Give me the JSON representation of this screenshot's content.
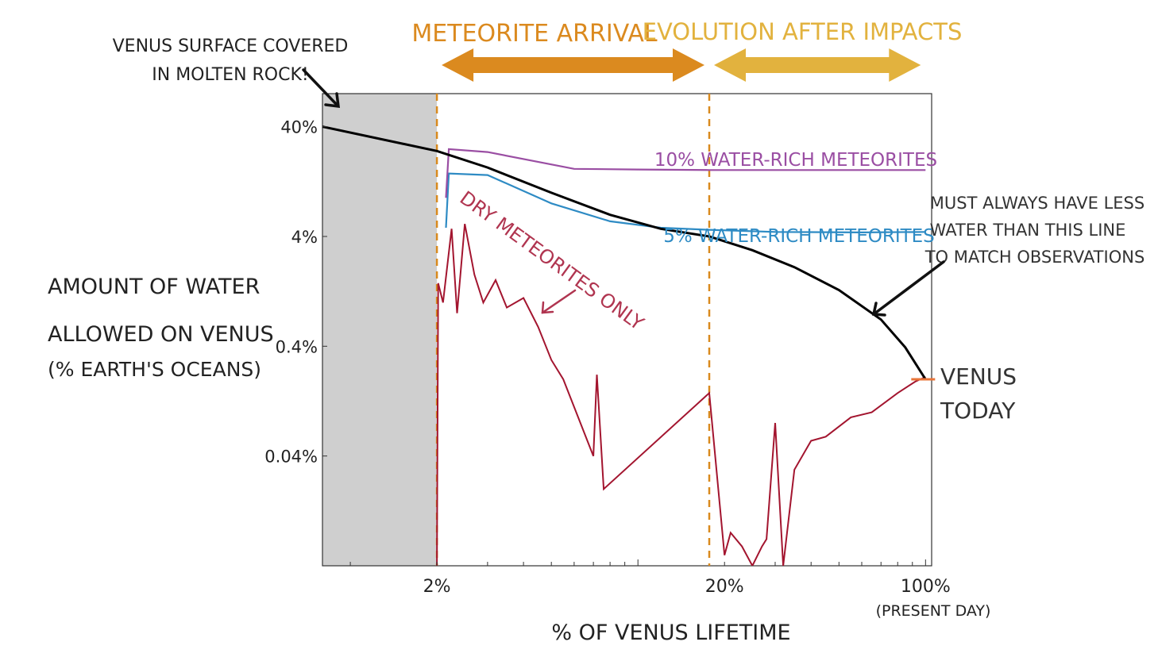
{
  "chart_data": {
    "type": "line",
    "title": "",
    "xlabel": "% OF VENUS LIFETIME",
    "ylabel": [
      "AMOUNT OF WATER",
      "ALLOWED ON VENUS",
      "(% EARTH'S OCEANS)"
    ],
    "x_scale": "log",
    "y_scale": "log",
    "xlim": [
      0.8,
      105
    ],
    "ylim": [
      0.004,
      80
    ],
    "x_ticks": [
      {
        "value": 2,
        "label": "2%"
      },
      {
        "value": 20,
        "label": "20%"
      },
      {
        "value": 100,
        "label": "100%"
      }
    ],
    "x_tick_sublabel": "(PRESENT DAY)",
    "y_ticks": [
      {
        "value": 40,
        "label": "40%"
      },
      {
        "value": 4,
        "label": "4%"
      },
      {
        "value": 0.4,
        "label": "0.4%"
      },
      {
        "value": 0.04,
        "label": "0.04%"
      }
    ],
    "shaded_region": {
      "x": [
        0.8,
        2
      ],
      "label": [
        "VENUS SURFACE COVERED",
        "IN MOLTEN ROCK!"
      ]
    },
    "vlines": [
      2,
      17.7
    ],
    "phases": [
      {
        "label": "METEORITE ARRIVAL",
        "x": [
          2,
          17.7
        ],
        "color": "#DB8A1F"
      },
      {
        "label": "EVOLUTION AFTER IMPACTS",
        "x": [
          17.7,
          100
        ],
        "color": "#E2B23E"
      }
    ],
    "series": [
      {
        "name": "MUST ALWAYS HAVE LESS WATER THAN THIS LINE TO MATCH OBSERVATIONS",
        "color": "#000000",
        "x": [
          0.8,
          2,
          3,
          5,
          8,
          12,
          17.7,
          25,
          35,
          50,
          70,
          85,
          100
        ],
        "y": [
          40,
          24,
          17,
          10,
          6.3,
          4.7,
          4.0,
          3.0,
          2.1,
          1.3,
          0.7,
          0.39,
          0.2
        ]
      },
      {
        "name": "10% WATER-RICH METEORITES",
        "color": "#9A4EA3",
        "x": [
          2.15,
          2.2,
          3,
          6,
          10,
          17.7,
          40,
          100
        ],
        "y": [
          9,
          25,
          23.5,
          16.5,
          16.3,
          16.1,
          16.1,
          16.1
        ]
      },
      {
        "name": "5% WATER-RICH METEORITES",
        "color": "#2E8BC4",
        "x": [
          2.15,
          2.2,
          3,
          5,
          8,
          12,
          17.7,
          30,
          60,
          100
        ],
        "y": [
          4.8,
          15,
          14.5,
          8,
          5.5,
          4.8,
          4.6,
          4.4,
          4.35,
          4.4
        ]
      },
      {
        "name": "DRY METEORITES ONLY",
        "color": "#A3152F",
        "x": [
          2,
          2.02,
          2.1,
          2.25,
          2.35,
          2.5,
          2.7,
          2.9,
          3.2,
          3.5,
          4,
          4.5,
          5,
          5.5,
          7,
          7.2,
          7.6,
          17.7,
          20,
          21,
          23,
          25,
          27,
          28,
          30,
          32,
          35,
          40,
          45,
          55,
          65,
          80,
          92,
          100
        ],
        "y": [
          0.004,
          1.5,
          1.0,
          4.7,
          0.8,
          5.2,
          1.8,
          1.0,
          1.6,
          0.9,
          1.1,
          0.6,
          0.3,
          0.2,
          0.04,
          0.22,
          0.02,
          0.15,
          0.005,
          0.008,
          0.006,
          0.004,
          0.006,
          0.007,
          0.08,
          0.004,
          0.03,
          0.055,
          0.06,
          0.09,
          0.1,
          0.15,
          0.19,
          0.21
        ]
      }
    ],
    "annotations": [
      {
        "text": "10% WATER-RICH METEORITES",
        "color": "#9A4EA3"
      },
      {
        "text": "5% WATER-RICH METEORITES",
        "color": "#2E8BC4"
      },
      {
        "text": "DRY METEORITES ONLY",
        "color": "#B03550"
      },
      {
        "text": [
          "MUST ALWAYS HAVE LESS",
          "WATER THAN THIS LINE",
          "TO MATCH OBSERVATIONS"
        ],
        "color": "#333333"
      },
      {
        "text": [
          "VENUS",
          "TODAY"
        ],
        "color": "#333333"
      }
    ],
    "venus_today": {
      "x": 100,
      "y": 0.2,
      "color": "#E8753A"
    },
    "grid": false
  }
}
